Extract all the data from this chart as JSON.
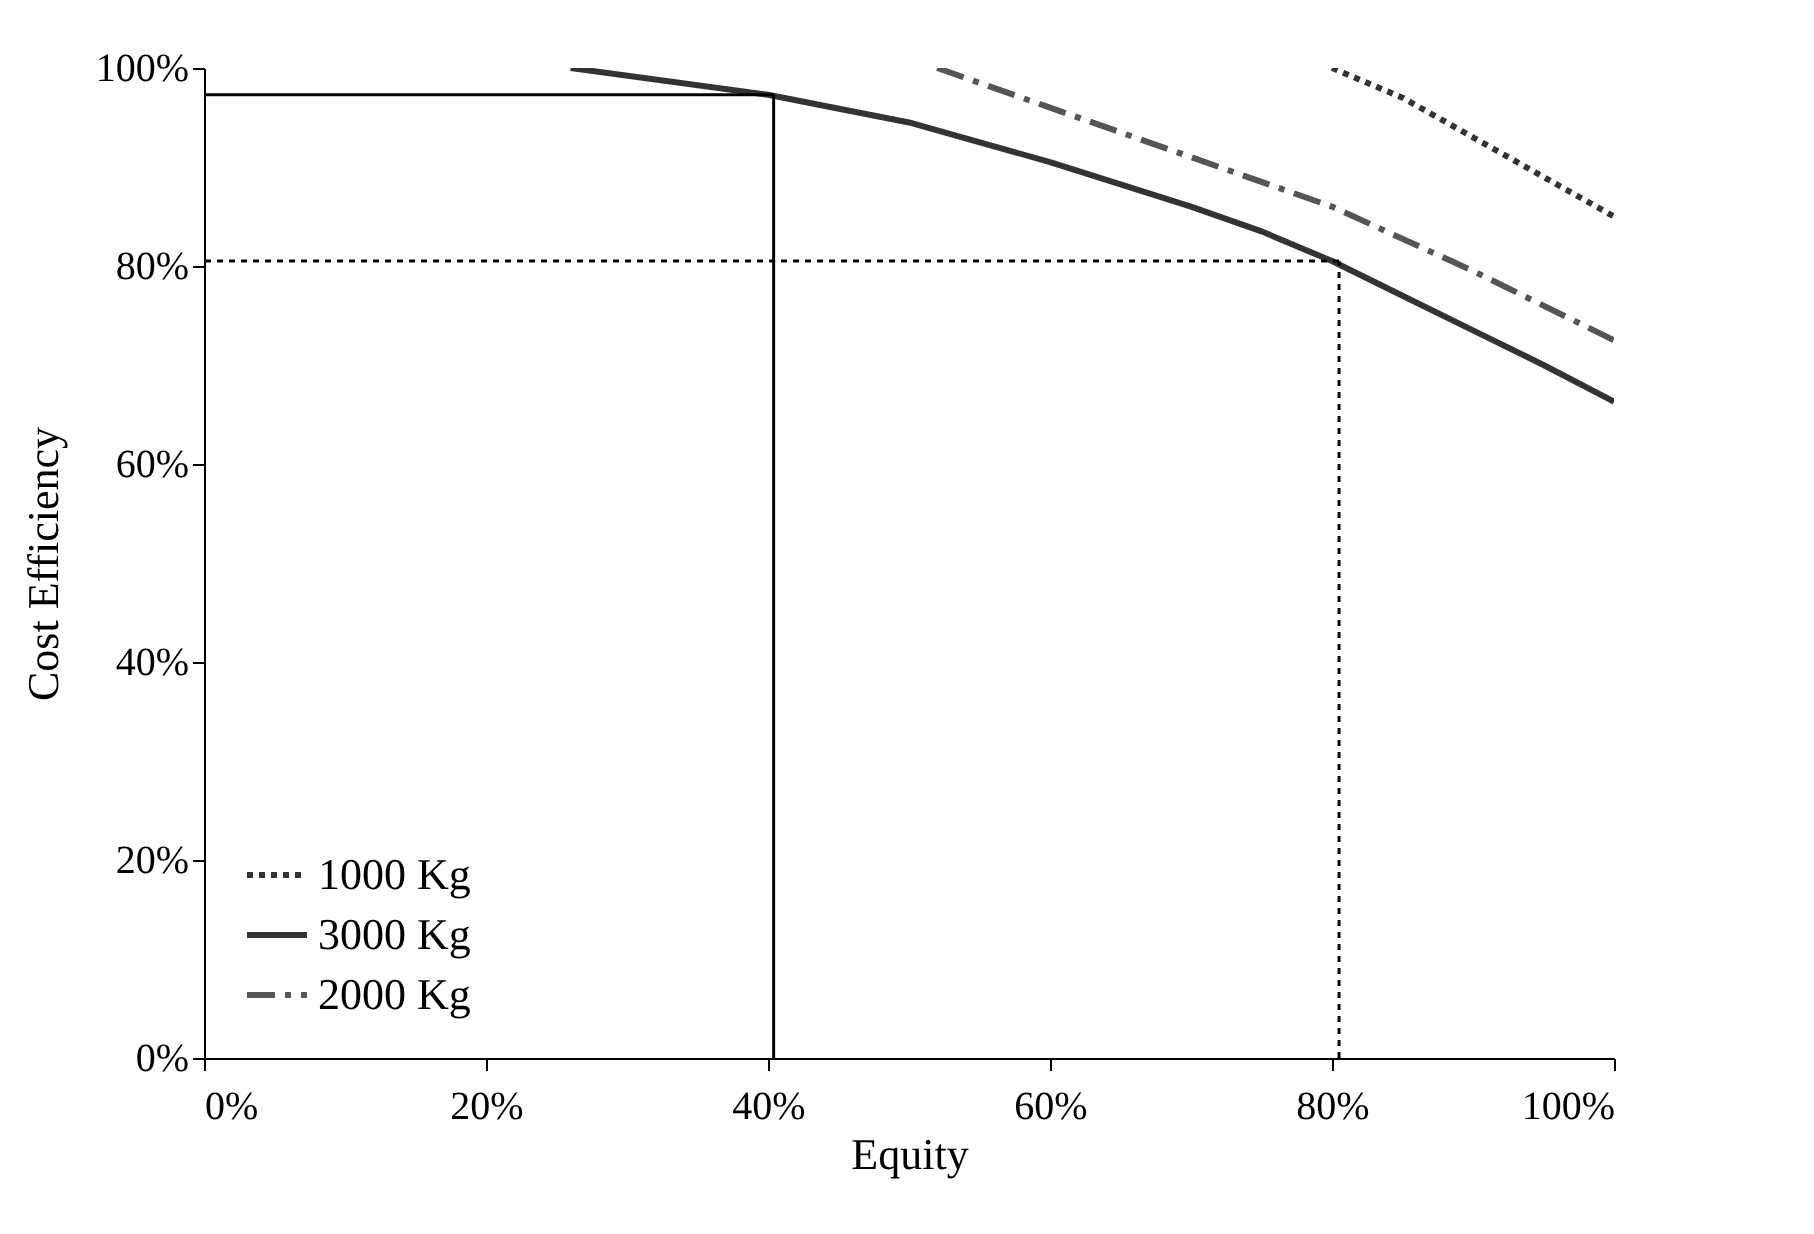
{
  "chart_data": {
    "type": "line",
    "xlabel": "Equity",
    "ylabel": "Cost Efficiency",
    "xlim": [
      0,
      100
    ],
    "ylim": [
      0,
      100
    ],
    "xticks": [
      {
        "value": 0,
        "label": "0%"
      },
      {
        "value": 20,
        "label": "20%"
      },
      {
        "value": 40,
        "label": "40%"
      },
      {
        "value": 60,
        "label": "60%"
      },
      {
        "value": 80,
        "label": "80%"
      },
      {
        "value": 100,
        "label": "100%"
      }
    ],
    "yticks": [
      {
        "value": 0,
        "label": "0%"
      },
      {
        "value": 20,
        "label": "20%"
      },
      {
        "value": 40,
        "label": "40%"
      },
      {
        "value": 60,
        "label": "60%"
      },
      {
        "value": 80,
        "label": "80%"
      },
      {
        "value": 100,
        "label": "100%"
      }
    ],
    "legend": "bottom left",
    "grid": false,
    "marker": "none",
    "series": [
      {
        "name": "1000 Kg",
        "color": "#333333",
        "line_style": "dotted",
        "x": [
          80,
          85,
          90,
          95,
          100
        ],
        "values": [
          100,
          97,
          93,
          89,
          85
        ]
      },
      {
        "name": "3000 Kg",
        "color": "#333333",
        "line_style": "solid",
        "x": [
          26,
          40,
          50,
          60,
          70,
          75,
          80,
          85,
          90,
          95,
          100
        ],
        "values": [
          100,
          97.3,
          94.5,
          90.5,
          86,
          83.5,
          80.5,
          77,
          73.5,
          70,
          66.3
        ]
      },
      {
        "name": "2000 Kg",
        "color": "#555555",
        "line_style": "dashed",
        "x": [
          52,
          60,
          70,
          80,
          90,
          100
        ],
        "values": [
          100,
          96,
          91,
          86,
          79.5,
          72.5
        ]
      },
      {
        "color": "#000000",
        "line_style": "solid",
        "x": [
          40.4,
          40.4
        ],
        "values": [
          0,
          97.3
        ]
      },
      {
        "color": "#000000",
        "line_style": "solid",
        "x": [
          40.4,
          0
        ],
        "values": [
          97.3,
          97.3
        ]
      },
      {
        "color": "#000000",
        "line_style": "dotted",
        "x": [
          80.5,
          80.5
        ],
        "values": [
          0,
          80.5
        ]
      },
      {
        "color": "#000000",
        "line_style": "dotted",
        "x": [
          80.5,
          0
        ],
        "values": [
          80.5,
          80.5
        ]
      }
    ]
  }
}
